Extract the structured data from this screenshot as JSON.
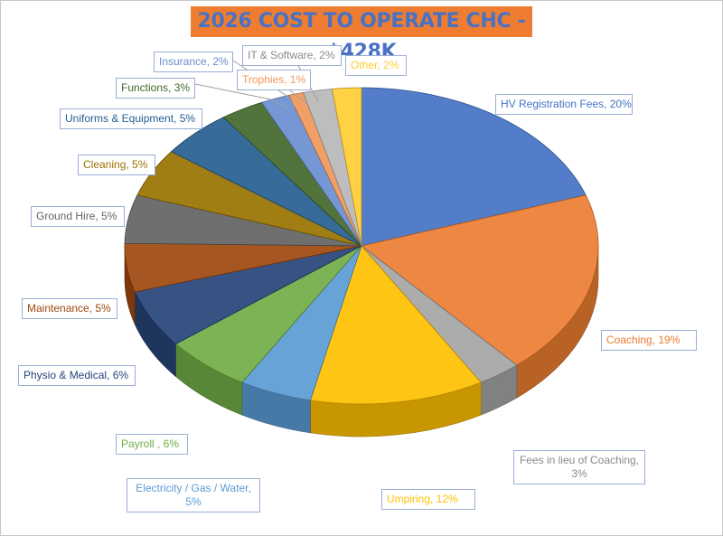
{
  "title": "2026 COST TO OPERATE CHC - $428K",
  "chart_data": {
    "type": "pie",
    "title": "2026 COST TO OPERATE CHC - $428K",
    "style": "3d-pie",
    "slices": [
      {
        "label": "HV Registration Fees, 20%",
        "value": 20,
        "color": "#4472c4"
      },
      {
        "label": "Coaching, 19%",
        "value": 19,
        "color": "#ed7d31"
      },
      {
        "label": "Fees in lieu of Coaching, 3%",
        "value": 3,
        "color": "#a5a5a5"
      },
      {
        "label": "Umpiring, 12%",
        "value": 12,
        "color": "#ffc000"
      },
      {
        "label": "Electricity / Gas / Water, 5%",
        "value": 5,
        "color": "#5b9bd5"
      },
      {
        "label": "Payroll , 6%",
        "value": 6,
        "color": "#70ad47"
      },
      {
        "label": "Physio & Medical, 6%",
        "value": 6,
        "color": "#264478"
      },
      {
        "label": "Maintenance, 5%",
        "value": 5,
        "color": "#9e480e"
      },
      {
        "label": "Ground Hire, 5%",
        "value": 5,
        "color": "#636363"
      },
      {
        "label": "Cleaning, 5%",
        "value": 5,
        "color": "#997300"
      },
      {
        "label": "Uniforms & Equipment, 5%",
        "value": 5,
        "color": "#255e91"
      },
      {
        "label": "Functions, 3%",
        "value": 3,
        "color": "#43682b"
      },
      {
        "label": "Insurance, 2%",
        "value": 2,
        "color": "#698ed0"
      },
      {
        "label": "Trophies, 1%",
        "value": 1,
        "color": "#f1975a"
      },
      {
        "label": "IT & Software, 2%",
        "value": 2,
        "color": "#b7b7b7"
      },
      {
        "label": "Other, 2%",
        "value": 2,
        "color": "#ffcd33"
      }
    ]
  }
}
